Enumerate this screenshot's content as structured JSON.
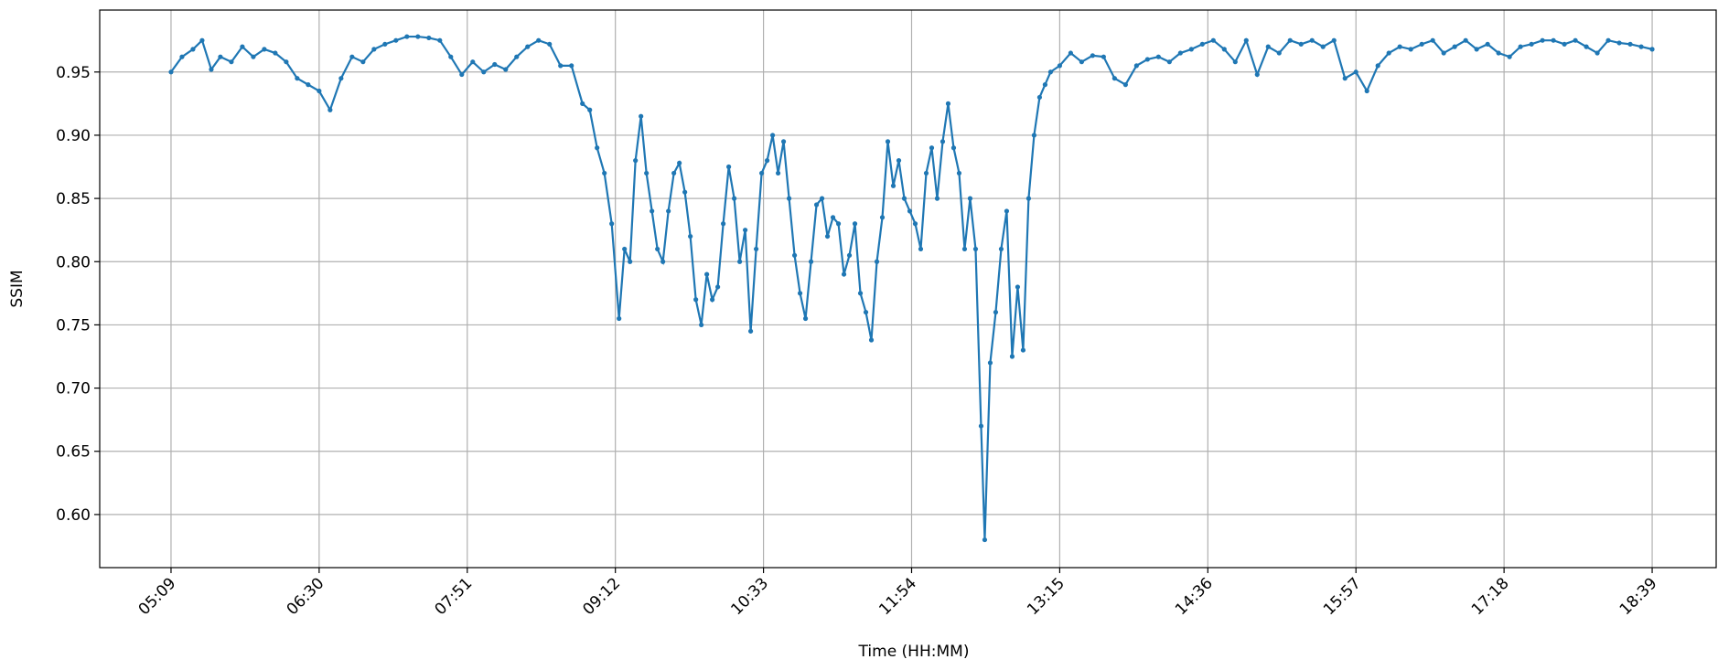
{
  "chart_data": {
    "type": "line",
    "xlabel": "Time (HH:MM)",
    "ylabel": "SSIM",
    "x": [
      "05:09",
      "05:15",
      "05:21",
      "05:26",
      "05:31",
      "05:36",
      "05:42",
      "05:48",
      "05:54",
      "06:00",
      "06:06",
      "06:12",
      "06:18",
      "06:24",
      "06:30",
      "06:36",
      "06:42",
      "06:48",
      "06:54",
      "07:00",
      "07:06",
      "07:12",
      "07:18",
      "07:24",
      "07:30",
      "07:36",
      "07:42",
      "07:48",
      "07:54",
      "08:00",
      "08:06",
      "08:12",
      "08:18",
      "08:24",
      "08:30",
      "08:36",
      "08:42",
      "08:48",
      "08:54",
      "08:58",
      "09:02",
      "09:06",
      "09:10",
      "09:14",
      "09:17",
      "09:20",
      "09:23",
      "09:26",
      "09:29",
      "09:32",
      "09:35",
      "09:38",
      "09:41",
      "09:44",
      "09:47",
      "09:50",
      "09:53",
      "09:56",
      "09:59",
      "10:02",
      "10:05",
      "10:08",
      "10:11",
      "10:14",
      "10:17",
      "10:20",
      "10:23",
      "10:26",
      "10:29",
      "10:32",
      "10:35",
      "10:38",
      "10:41",
      "10:44",
      "10:47",
      "10:50",
      "10:53",
      "10:56",
      "10:59",
      "11:02",
      "11:05",
      "11:08",
      "11:11",
      "11:14",
      "11:17",
      "11:20",
      "11:23",
      "11:26",
      "11:29",
      "11:32",
      "11:35",
      "11:38",
      "11:41",
      "11:44",
      "11:47",
      "11:50",
      "11:53",
      "11:56",
      "11:59",
      "12:02",
      "12:05",
      "12:08",
      "12:11",
      "12:14",
      "12:17",
      "12:20",
      "12:23",
      "12:26",
      "12:29",
      "12:32",
      "12:34",
      "12:37",
      "12:40",
      "12:43",
      "12:46",
      "12:49",
      "12:52",
      "12:55",
      "12:58",
      "13:01",
      "13:04",
      "13:07",
      "13:10",
      "13:15",
      "13:21",
      "13:27",
      "13:33",
      "13:39",
      "13:45",
      "13:51",
      "13:57",
      "14:03",
      "14:09",
      "14:15",
      "14:21",
      "14:27",
      "14:33",
      "14:39",
      "14:45",
      "14:51",
      "14:57",
      "15:03",
      "15:09",
      "15:15",
      "15:21",
      "15:27",
      "15:33",
      "15:39",
      "15:45",
      "15:51",
      "15:57",
      "16:03",
      "16:09",
      "16:15",
      "16:21",
      "16:27",
      "16:33",
      "16:39",
      "16:45",
      "16:51",
      "16:57",
      "17:03",
      "17:09",
      "17:15",
      "17:21",
      "17:27",
      "17:33",
      "17:39",
      "17:45",
      "17:51",
      "17:57",
      "18:03",
      "18:09",
      "18:15",
      "18:21",
      "18:27",
      "18:33",
      "18:39"
    ],
    "series": [
      {
        "color": "#1f77b4",
        "values": [
          0.95,
          0.962,
          0.968,
          0.975,
          0.952,
          0.962,
          0.958,
          0.97,
          0.962,
          0.968,
          0.965,
          0.958,
          0.945,
          0.94,
          0.935,
          0.92,
          0.945,
          0.962,
          0.958,
          0.968,
          0.972,
          0.975,
          0.978,
          0.978,
          0.977,
          0.975,
          0.962,
          0.948,
          0.958,
          0.95,
          0.956,
          0.952,
          0.962,
          0.97,
          0.975,
          0.972,
          0.955,
          0.955,
          0.925,
          0.92,
          0.89,
          0.87,
          0.83,
          0.755,
          0.81,
          0.8,
          0.88,
          0.915,
          0.87,
          0.84,
          0.81,
          0.8,
          0.84,
          0.87,
          0.878,
          0.855,
          0.82,
          0.77,
          0.75,
          0.79,
          0.77,
          0.78,
          0.83,
          0.875,
          0.85,
          0.8,
          0.825,
          0.745,
          0.81,
          0.87,
          0.88,
          0.9,
          0.87,
          0.895,
          0.85,
          0.805,
          0.775,
          0.755,
          0.8,
          0.845,
          0.85,
          0.82,
          0.835,
          0.83,
          0.79,
          0.805,
          0.83,
          0.775,
          0.76,
          0.738,
          0.8,
          0.835,
          0.895,
          0.86,
          0.88,
          0.85,
          0.84,
          0.83,
          0.81,
          0.87,
          0.89,
          0.85,
          0.895,
          0.925,
          0.89,
          0.87,
          0.81,
          0.85,
          0.81,
          0.67,
          0.58,
          0.72,
          0.76,
          0.81,
          0.84,
          0.725,
          0.78,
          0.73,
          0.85,
          0.9,
          0.93,
          0.94,
          0.95,
          0.955,
          0.965,
          0.958,
          0.963,
          0.962,
          0.945,
          0.94,
          0.955,
          0.96,
          0.962,
          0.958,
          0.965,
          0.968,
          0.972,
          0.975,
          0.968,
          0.958,
          0.975,
          0.948,
          0.97,
          0.965,
          0.975,
          0.972,
          0.975,
          0.97,
          0.975,
          0.945,
          0.95,
          0.935,
          0.955,
          0.965,
          0.97,
          0.968,
          0.972,
          0.975,
          0.965,
          0.97,
          0.975,
          0.968,
          0.972,
          0.965,
          0.962,
          0.97,
          0.972,
          0.975,
          0.975,
          0.972,
          0.975,
          0.97,
          0.965,
          0.975,
          0.973,
          0.972,
          0.97,
          0.968
        ]
      }
    ],
    "xlim": [
      "04:30",
      "19:14"
    ],
    "xticks": [
      "05:09",
      "06:30",
      "07:51",
      "09:12",
      "10:33",
      "11:54",
      "13:15",
      "14:36",
      "15:57",
      "17:18",
      "18:39"
    ],
    "ylim": [
      0.558,
      0.999
    ],
    "yticks": [
      {
        "value": 0.6,
        "label": "0.60"
      },
      {
        "value": 0.65,
        "label": "0.65"
      },
      {
        "value": 0.7,
        "label": "0.70"
      },
      {
        "value": 0.75,
        "label": "0.75"
      },
      {
        "value": 0.8,
        "label": "0.80"
      },
      {
        "value": 0.85,
        "label": "0.85"
      },
      {
        "value": 0.9,
        "label": "0.90"
      },
      {
        "value": 0.95,
        "label": "0.95"
      }
    ],
    "grid": true
  }
}
